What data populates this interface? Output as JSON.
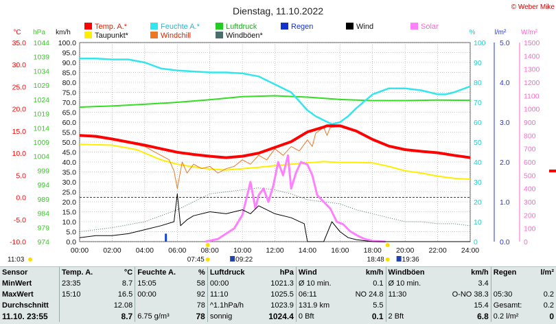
{
  "title": "Dienstag, 11.10.2022",
  "copyright": "© Weber Mike",
  "colors": {
    "temp": "#ff0000",
    "humidity": "#33e6ee",
    "pressure": "#33dd22",
    "wind": "#000000",
    "solar": "#ff80ff",
    "dewpoint": "#ffee00",
    "windchill": "#ee7722",
    "gust": "#4a6e6e",
    "rain": "#1144dd",
    "axis_temp": "#ff0000",
    "axis_pressure": "#33cc22",
    "axis_hum": "#22cccc",
    "axis_rain": "#2233dd",
    "axis_solar": "#ff66cc"
  },
  "legend": [
    {
      "label": "Temp. A.*",
      "color": "#ff0000"
    },
    {
      "label": "Feuchte A.*",
      "color": "#33e6ee"
    },
    {
      "label": "Luftdruck",
      "color": "#22cc22"
    },
    {
      "label": "Regen",
      "color": "#1133cc"
    },
    {
      "label": "Wind",
      "color": "#000000"
    },
    {
      "label": "Solar",
      "color": "#ff80ff"
    },
    {
      "label": "Taupunkt*",
      "color": "#ffee00"
    },
    {
      "label": "Windchill",
      "color": "#ee7722"
    },
    {
      "label": "Windböen*",
      "color": "#4a6e6e"
    }
  ],
  "axes": {
    "temp": {
      "unit": "°C",
      "ticks": [
        "35.0",
        "30.0",
        "25.0",
        "20.0",
        "15.0",
        "10.0",
        "5.0",
        "0.0",
        "-5.0",
        "-10.0"
      ]
    },
    "pressure": {
      "unit": "hPa",
      "ticks": [
        "1044",
        "1039",
        "1034",
        "1029",
        "1024",
        "1019",
        "1014",
        "1009",
        "1004",
        "999",
        "994",
        "989",
        "984",
        "979",
        "974"
      ]
    },
    "wind": {
      "unit": "km/h",
      "ticks": [
        "100.0",
        "95.0",
        "90.0",
        "85.0",
        "80.0",
        "75.0",
        "70.0",
        "65.0",
        "60.0",
        "55.0",
        "50.0",
        "45.0",
        "40.0",
        "35.0",
        "30.0",
        "25.0",
        "20.0",
        "15.0",
        "10.0",
        "5.0",
        "0.0"
      ]
    },
    "humidity": {
      "unit": "%",
      "ticks": [
        "100",
        "90",
        "80",
        "70",
        "60",
        "50",
        "40",
        "30",
        "20",
        "10",
        "0"
      ]
    },
    "rain": {
      "unit": "l/m²",
      "ticks": [
        "5.0",
        "4.0",
        "3.0",
        "2.0",
        "1.0",
        "0.0"
      ]
    },
    "solar": {
      "unit": "W/m²",
      "ticks": [
        "1500",
        "1400",
        "1300",
        "1200",
        "1100",
        "1000",
        "900",
        "800",
        "700",
        "600",
        "500",
        "400",
        "300",
        "200",
        "100",
        "0"
      ]
    },
    "x_ticks": [
      "00:00",
      "02:00",
      "04:00",
      "06:00",
      "08:00",
      "10:00",
      "12:00",
      "14:00",
      "16:00",
      "18:00",
      "20:00",
      "22:00",
      "24:00"
    ]
  },
  "markers": {
    "left_time": "11:03",
    "sunrise": "07:45",
    "moonrise": "09:22",
    "sunset": "18:48",
    "moonset": "19:36"
  },
  "chart_data": {
    "type": "line",
    "xlabel": "",
    "x_unit": "hour",
    "x_range": [
      0,
      24
    ],
    "series": [
      {
        "name": "Temp. A.*",
        "axis": "temp",
        "ylim": [
          -10,
          35
        ],
        "x": [
          0,
          1,
          2,
          3,
          4,
          5,
          6,
          7,
          8,
          9,
          10,
          11,
          12,
          13,
          14,
          15,
          15.2,
          16,
          17,
          18,
          19,
          20,
          21,
          22,
          23,
          24
        ],
        "y": [
          14.0,
          13.8,
          13.2,
          12.5,
          11.8,
          11.0,
          10.2,
          9.7,
          9.3,
          9.0,
          9.3,
          10.0,
          11.3,
          12.6,
          14.8,
          15.9,
          16.2,
          16.2,
          15.0,
          13.1,
          11.6,
          10.8,
          10.4,
          10.1,
          9.5,
          9.0
        ]
      },
      {
        "name": "Feuchte A.*",
        "axis": "humidity",
        "ylim": [
          0,
          100
        ],
        "x": [
          0,
          1,
          2,
          3,
          4,
          5,
          6,
          7,
          8,
          9,
          10,
          11,
          12,
          13,
          14,
          14.5,
          15,
          15.5,
          16,
          16.5,
          17,
          18,
          19,
          20,
          21,
          22,
          22.5,
          23,
          24
        ],
        "y": [
          92,
          92,
          91.5,
          91.5,
          90,
          87,
          86,
          85.5,
          85,
          85,
          84.5,
          83,
          79,
          75,
          66,
          63,
          61,
          59,
          60,
          63,
          67,
          74,
          77,
          77,
          76,
          74,
          74,
          75,
          78
        ]
      },
      {
        "name": "Luftdruck",
        "axis": "pressure",
        "ylim": [
          974,
          1044
        ],
        "x": [
          0,
          2,
          4,
          6,
          8,
          10,
          12,
          14,
          16,
          18,
          20,
          22,
          24
        ],
        "y": [
          1021.3,
          1021.7,
          1022.3,
          1023.0,
          1023.9,
          1025.0,
          1025.3,
          1024.8,
          1024.0,
          1023.6,
          1023.6,
          1023.8,
          1023.7
        ]
      },
      {
        "name": "Taupunkt*",
        "axis": "temp",
        "ylim": [
          -10,
          35
        ],
        "x": [
          0,
          2,
          3.5,
          5,
          6,
          7,
          8,
          9,
          10,
          11,
          12,
          13,
          14,
          15,
          16,
          17,
          18,
          19,
          20,
          21,
          22,
          23,
          24
        ],
        "y": [
          12.0,
          11.8,
          10.8,
          8.5,
          7.5,
          6.9,
          6.4,
          6.2,
          6.5,
          6.8,
          7.2,
          7.5,
          7.8,
          8.1,
          7.9,
          7.9,
          7.8,
          7.0,
          6.0,
          5.5,
          4.8,
          4.3,
          4.1
        ]
      },
      {
        "name": "Windchill",
        "axis": "temp",
        "ylim": [
          -10,
          35
        ],
        "x": [
          0,
          1,
          2,
          3,
          4,
          4.5,
          5,
          5.5,
          5.8,
          6,
          6.3,
          6.6,
          7,
          7.5,
          8,
          8.5,
          9,
          9.5,
          10,
          10.5,
          11,
          11.5,
          12,
          12.5,
          13,
          13.5,
          14,
          14.3,
          14.5,
          15,
          15.2,
          15.4,
          16
        ],
        "y": [
          14.0,
          13.8,
          13.0,
          12.3,
          11.5,
          10.5,
          9.5,
          8.5,
          6.0,
          2.0,
          8.0,
          5.5,
          7.5,
          6.5,
          7.0,
          5.5,
          6.5,
          7.0,
          8.5,
          7.5,
          9.5,
          8.5,
          11.0,
          9.5,
          11.5,
          10.5,
          13.0,
          11.5,
          14.5,
          15.8,
          14.0,
          15.8,
          16.0
        ]
      },
      {
        "name": "Wind",
        "axis": "wind",
        "ylim": [
          0,
          100
        ],
        "x": [
          0,
          1,
          2,
          3,
          4,
          5,
          5.8,
          6,
          6.2,
          6.6,
          7,
          8,
          9,
          10,
          10.5,
          11,
          11.5,
          12,
          13,
          13.8,
          14,
          14.5,
          15,
          15.5,
          16,
          16.5,
          17,
          18,
          19,
          20,
          24
        ],
        "y": [
          2,
          3,
          3,
          4,
          6,
          8,
          10,
          24,
          8,
          11,
          13,
          15,
          14,
          16,
          14,
          18,
          16,
          14,
          12,
          9,
          0,
          0,
          0,
          10,
          5,
          2,
          1,
          0,
          0,
          0,
          0
        ]
      },
      {
        "name": "Windböen*",
        "axis": "wind",
        "ylim": [
          0,
          100
        ],
        "x": [
          0,
          2,
          4,
          6,
          7,
          8,
          9,
          10,
          11,
          12,
          13,
          14,
          15,
          16,
          17,
          18,
          19,
          20,
          21,
          22,
          23,
          24
        ],
        "y": [
          5,
          7,
          10,
          16,
          20,
          24,
          25,
          26,
          27,
          26,
          24,
          21,
          20,
          19,
          16,
          14,
          12,
          10,
          10,
          9,
          9,
          8
        ]
      },
      {
        "name": "Solar",
        "axis": "solar",
        "ylim": [
          0,
          1500
        ],
        "x": [
          7.75,
          8.5,
          9.5,
          10,
          10.5,
          10.8,
          11,
          11.3,
          11.6,
          11.9,
          12.2,
          12.5,
          12.8,
          13,
          13.3,
          13.6,
          14,
          14.3,
          14.6,
          15,
          15.4,
          15.8,
          16.2,
          16.6,
          17,
          17.5,
          18,
          18.8
        ],
        "y": [
          0,
          20,
          100,
          200,
          450,
          250,
          350,
          400,
          300,
          420,
          600,
          500,
          650,
          400,
          520,
          600,
          580,
          500,
          350,
          300,
          250,
          150,
          130,
          80,
          50,
          20,
          5,
          0
        ]
      },
      {
        "name": "Regen",
        "axis": "rain",
        "ylim": [
          0,
          5
        ],
        "x": [
          5.3
        ],
        "y": [
          0.2
        ]
      }
    ]
  },
  "table": {
    "headers": [
      "Sensor",
      "Temp. A.",
      "°C",
      "Feuchte A.",
      "%",
      "Luftdruck",
      "hPa",
      "Wind",
      "km/h",
      "Windböen",
      "km/h",
      "Regen",
      "l/m²"
    ],
    "rows": [
      {
        "label": "MinWert",
        "c": [
          "23:35",
          "8.7",
          "15:05",
          "58",
          "00:00",
          "1021.3",
          "Ø 10 min.",
          "0.1",
          "Ø 10 min.",
          "3.4",
          "",
          ""
        ]
      },
      {
        "label": "MaxWert",
        "c": [
          "15:10",
          "16.5",
          "00:00",
          "92",
          "11:10",
          "1025.5",
          "06:11",
          "NO 24.8",
          "11:30",
          "O-NO 38.3",
          "05:30",
          "0.2"
        ]
      },
      {
        "label": "Durchschnitt",
        "c": [
          "",
          "12.08",
          "",
          "78",
          "^1.1hPa/h",
          "1023.9",
          "131.9 km",
          "5.5",
          "",
          "15.4",
          "Gesamt:",
          "0.2"
        ]
      },
      {
        "label": "11.10. 23:55",
        "c": [
          "",
          "8.7",
          "6.75 g/m³",
          "78",
          "sonnig",
          "1024.4",
          "0 Bft",
          "0.1",
          "2 Bft",
          "6.8",
          "0.2 l/m²",
          "0"
        ]
      }
    ]
  }
}
